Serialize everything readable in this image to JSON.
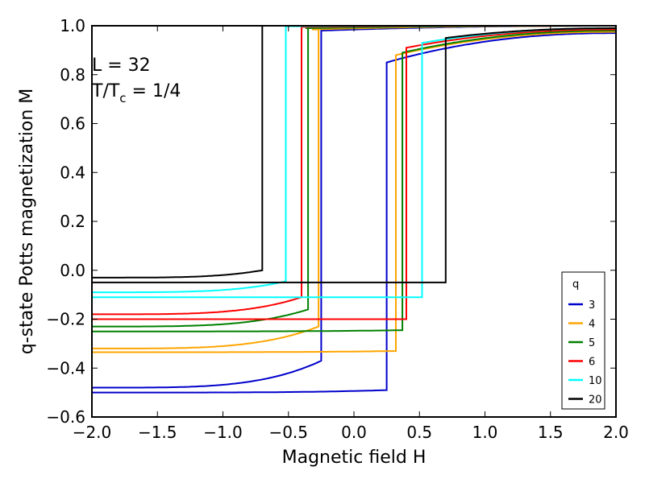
{
  "chart_data": {
    "type": "line",
    "title": "",
    "xlabel": "Magnetic field H",
    "ylabel": "q-state Potts magnetization M",
    "xlim": [
      -2.0,
      2.0
    ],
    "ylim": [
      -0.6,
      1.0
    ],
    "xticks": [
      -2.0,
      -1.5,
      -1.0,
      -0.5,
      0.0,
      0.5,
      1.0,
      1.5,
      2.0
    ],
    "yticks": [
      -0.6,
      -0.4,
      -0.2,
      0.0,
      0.2,
      0.4,
      0.6,
      0.8,
      1.0
    ],
    "xtick_labels": [
      "−2.0",
      "−1.5",
      "−1.0",
      "−0.5",
      "0.0",
      "0.5",
      "1.0",
      "1.5",
      "2.0"
    ],
    "ytick_labels": [
      "−0.6",
      "−0.4",
      "−0.2",
      "0.0",
      "0.2",
      "0.4",
      "0.6",
      "0.8",
      "1.0"
    ],
    "grid": false,
    "legend": {
      "title": "q",
      "placement": "lower-right"
    },
    "annotations": {
      "line1": "L = 32",
      "line2_main": "T/T",
      "line2_sub": "c",
      "line2_tail": " = 1/4"
    },
    "series": [
      {
        "name": "3",
        "color": "#0000cc",
        "Hc": 0.25,
        "top": {
          "H": [
            -2.0,
            -0.25
          ],
          "M": [
            -0.48,
            -0.37
          ]
        },
        "bottom": {
          "H": [
            -2.0,
            0.25
          ],
          "M": [
            -0.5,
            -0.49
          ]
        },
        "upper": {
          "H": [
            -0.25,
            2.0
          ],
          "M": [
            0.98,
            1.0
          ]
        },
        "lower": {
          "H": [
            0.25,
            2.0
          ],
          "M": [
            0.85,
            0.97
          ]
        }
      },
      {
        "name": "4",
        "color": "#ffa500",
        "Hc": 0.32,
        "top": {
          "H": [
            -2.0,
            -0.27
          ],
          "M": [
            -0.32,
            -0.23
          ]
        },
        "bottom": {
          "H": [
            -2.0,
            0.32
          ],
          "M": [
            -0.335,
            -0.33
          ]
        },
        "upper": {
          "H": [
            -0.32,
            2.0
          ],
          "M": [
            0.985,
            1.0
          ]
        },
        "lower": {
          "H": [
            0.32,
            2.0
          ],
          "M": [
            0.88,
            0.975
          ]
        }
      },
      {
        "name": "5",
        "color": "#008000",
        "Hc": 0.37,
        "top": {
          "H": [
            -2.0,
            -0.35
          ],
          "M": [
            -0.23,
            -0.16
          ]
        },
        "bottom": {
          "H": [
            -2.0,
            0.37
          ],
          "M": [
            -0.25,
            -0.245
          ]
        },
        "upper": {
          "H": [
            -0.37,
            2.0
          ],
          "M": [
            0.99,
            1.0
          ]
        },
        "lower": {
          "H": [
            0.37,
            2.0
          ],
          "M": [
            0.89,
            0.98
          ]
        }
      },
      {
        "name": "6",
        "color": "#ff0000",
        "Hc": 0.4,
        "top": {
          "H": [
            -2.0,
            -0.4
          ],
          "M": [
            -0.18,
            -0.11
          ]
        },
        "bottom": {
          "H": [
            -2.0,
            0.4
          ],
          "M": [
            -0.2,
            -0.2
          ]
        },
        "upper": {
          "H": [
            -0.4,
            2.0
          ],
          "M": [
            0.995,
            1.0
          ]
        },
        "lower": {
          "H": [
            0.4,
            2.0
          ],
          "M": [
            0.91,
            0.985
          ]
        }
      },
      {
        "name": "10",
        "color": "#00ffff",
        "Hc": 0.52,
        "top": {
          "H": [
            -2.0,
            -0.52
          ],
          "M": [
            -0.09,
            -0.045
          ]
        },
        "bottom": {
          "H": [
            -2.0,
            0.52
          ],
          "M": [
            -0.11,
            -0.11
          ]
        },
        "upper": {
          "H": [
            -0.52,
            2.0
          ],
          "M": [
            0.998,
            1.0
          ]
        },
        "lower": {
          "H": [
            0.52,
            2.0
          ],
          "M": [
            0.93,
            0.99
          ]
        }
      },
      {
        "name": "20",
        "color": "#000000",
        "Hc": 0.7,
        "top": {
          "H": [
            -2.0,
            -0.7
          ],
          "M": [
            -0.03,
            0.0
          ]
        },
        "bottom": {
          "H": [
            -2.0,
            0.7
          ],
          "M": [
            -0.05,
            -0.05
          ]
        },
        "upper": {
          "H": [
            -0.7,
            2.0
          ],
          "M": [
            1.0,
            1.0
          ]
        },
        "lower": {
          "H": [
            0.7,
            2.0
          ],
          "M": [
            0.95,
            0.99
          ]
        }
      }
    ]
  }
}
